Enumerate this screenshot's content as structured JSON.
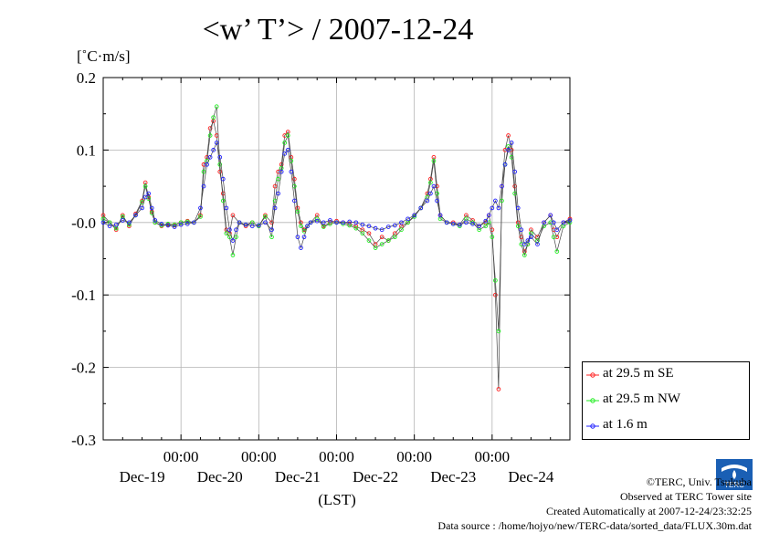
{
  "title": "<w’ T’> / 2007-12-24",
  "unit_label": "[˚C·m/s]",
  "chart_data": {
    "type": "line",
    "title": "<w’ T’> / 2007-12-24",
    "ylabel": "[˚C·m/s]",
    "xlabel": "(LST)",
    "ylim": [
      -0.3,
      0.2
    ],
    "xlim": [
      0,
      144
    ],
    "y_ticks": [
      {
        "value": 0.2,
        "label": "0.2"
      },
      {
        "value": 0.1,
        "label": "0.1"
      },
      {
        "value": 0.0,
        "label": "-0.0"
      },
      {
        "value": -0.1,
        "label": "-0.1"
      },
      {
        "value": -0.2,
        "label": "-0.2"
      },
      {
        "value": -0.3,
        "label": "-0.3"
      }
    ],
    "x_time_ticks": [
      {
        "hour": 24,
        "label": "00:00"
      },
      {
        "hour": 48,
        "label": "00:00"
      },
      {
        "hour": 72,
        "label": "00:00"
      },
      {
        "hour": 96,
        "label": "00:00"
      },
      {
        "hour": 120,
        "label": "00:00"
      }
    ],
    "x_day_ticks": [
      {
        "hour": 12,
        "label": "Dec-19"
      },
      {
        "hour": 36,
        "label": "Dec-20"
      },
      {
        "hour": 60,
        "label": "Dec-21"
      },
      {
        "hour": 84,
        "label": "Dec-22"
      },
      {
        "hour": 108,
        "label": "Dec-23"
      },
      {
        "hour": 132,
        "label": "Dec-24"
      }
    ],
    "grid": true,
    "legend_position": "bottom-right",
    "series": [
      {
        "name": "at 29.5 m SE",
        "color": "#ff2020",
        "points": [
          [
            0,
            0.01
          ],
          [
            2,
            0.0
          ],
          [
            4,
            -0.01
          ],
          [
            6,
            0.01
          ],
          [
            8,
            -0.005
          ],
          [
            10,
            0.012
          ],
          [
            12,
            0.03
          ],
          [
            13,
            0.055
          ],
          [
            14,
            0.035
          ],
          [
            15,
            0.015
          ],
          [
            16,
            0.0
          ],
          [
            18,
            -0.005
          ],
          [
            20,
            -0.003
          ],
          [
            22,
            -0.004
          ],
          [
            24,
            0.0
          ],
          [
            26,
            0.002
          ],
          [
            28,
            0.0
          ],
          [
            30,
            0.01
          ],
          [
            31,
            0.08
          ],
          [
            32,
            0.09
          ],
          [
            33,
            0.13
          ],
          [
            34,
            0.14
          ],
          [
            35,
            0.12
          ],
          [
            36,
            0.07
          ],
          [
            37,
            0.04
          ],
          [
            38,
            -0.01
          ],
          [
            39,
            -0.015
          ],
          [
            40,
            0.01
          ],
          [
            42,
            0.0
          ],
          [
            44,
            -0.005
          ],
          [
            46,
            0.0
          ],
          [
            48,
            -0.005
          ],
          [
            50,
            0.01
          ],
          [
            52,
            0.0
          ],
          [
            53,
            0.05
          ],
          [
            54,
            0.07
          ],
          [
            55,
            0.08
          ],
          [
            56,
            0.12
          ],
          [
            57,
            0.125
          ],
          [
            58,
            0.09
          ],
          [
            59,
            0.06
          ],
          [
            60,
            0.02
          ],
          [
            61,
            0.0
          ],
          [
            62,
            -0.01
          ],
          [
            63,
            -0.005
          ],
          [
            64,
            0.0
          ],
          [
            66,
            0.01
          ],
          [
            68,
            -0.005
          ],
          [
            70,
            0.0
          ],
          [
            72,
            0.002
          ],
          [
            74,
            0.0
          ],
          [
            76,
            -0.002
          ],
          [
            78,
            -0.005
          ],
          [
            80,
            -0.01
          ],
          [
            82,
            -0.015
          ],
          [
            84,
            -0.03
          ],
          [
            86,
            -0.02
          ],
          [
            88,
            -0.025
          ],
          [
            90,
            -0.015
          ],
          [
            92,
            -0.005
          ],
          [
            94,
            0.0
          ],
          [
            96,
            0.01
          ],
          [
            98,
            0.02
          ],
          [
            100,
            0.04
          ],
          [
            101,
            0.06
          ],
          [
            102,
            0.09
          ],
          [
            103,
            0.05
          ],
          [
            104,
            0.01
          ],
          [
            106,
            0.0
          ],
          [
            108,
            0.0
          ],
          [
            110,
            -0.003
          ],
          [
            112,
            0.01
          ],
          [
            114,
            0.003
          ],
          [
            116,
            -0.005
          ],
          [
            118,
            0.0
          ],
          [
            119,
            0.01
          ],
          [
            120,
            -0.01
          ],
          [
            121,
            -0.1
          ],
          [
            122,
            -0.23
          ],
          [
            123,
            0.05
          ],
          [
            124,
            0.1
          ],
          [
            125,
            0.12
          ],
          [
            126,
            0.1
          ],
          [
            127,
            0.05
          ],
          [
            128,
            0.0
          ],
          [
            129,
            -0.02
          ],
          [
            130,
            -0.04
          ],
          [
            131,
            -0.03
          ],
          [
            132,
            -0.01
          ],
          [
            134,
            -0.02
          ],
          [
            136,
            0.0
          ],
          [
            138,
            0.01
          ],
          [
            139,
            -0.01
          ],
          [
            140,
            -0.02
          ],
          [
            142,
            0.0
          ],
          [
            144,
            0.005
          ]
        ]
      },
      {
        "name": "at 29.5 m NW",
        "color": "#20ee20",
        "points": [
          [
            0,
            0.005
          ],
          [
            2,
            0.0
          ],
          [
            4,
            -0.008
          ],
          [
            6,
            0.008
          ],
          [
            8,
            -0.003
          ],
          [
            10,
            0.01
          ],
          [
            12,
            0.028
          ],
          [
            13,
            0.05
          ],
          [
            14,
            0.033
          ],
          [
            15,
            0.013
          ],
          [
            16,
            0.0
          ],
          [
            18,
            -0.004
          ],
          [
            20,
            -0.002
          ],
          [
            22,
            -0.003
          ],
          [
            24,
            0.0
          ],
          [
            26,
            0.001
          ],
          [
            28,
            0.0
          ],
          [
            30,
            0.008
          ],
          [
            31,
            0.07
          ],
          [
            32,
            0.085
          ],
          [
            33,
            0.12
          ],
          [
            34,
            0.145
          ],
          [
            35,
            0.16
          ],
          [
            36,
            0.08
          ],
          [
            37,
            0.03
          ],
          [
            38,
            -0.015
          ],
          [
            39,
            -0.02
          ],
          [
            40,
            -0.045
          ],
          [
            41,
            -0.02
          ],
          [
            42,
            0.0
          ],
          [
            44,
            -0.003
          ],
          [
            46,
            0.0
          ],
          [
            48,
            -0.005
          ],
          [
            50,
            0.008
          ],
          [
            52,
            -0.02
          ],
          [
            53,
            0.03
          ],
          [
            54,
            0.06
          ],
          [
            55,
            0.075
          ],
          [
            56,
            0.11
          ],
          [
            57,
            0.12
          ],
          [
            58,
            0.085
          ],
          [
            59,
            0.05
          ],
          [
            60,
            0.015
          ],
          [
            61,
            -0.005
          ],
          [
            62,
            -0.012
          ],
          [
            63,
            -0.005
          ],
          [
            64,
            0.0
          ],
          [
            66,
            0.005
          ],
          [
            68,
            -0.006
          ],
          [
            70,
            -0.002
          ],
          [
            72,
            0.0
          ],
          [
            74,
            -0.002
          ],
          [
            76,
            -0.004
          ],
          [
            78,
            -0.008
          ],
          [
            80,
            -0.015
          ],
          [
            82,
            -0.025
          ],
          [
            84,
            -0.035
          ],
          [
            86,
            -0.03
          ],
          [
            88,
            -0.025
          ],
          [
            90,
            -0.02
          ],
          [
            92,
            -0.01
          ],
          [
            94,
            0.0
          ],
          [
            96,
            0.008
          ],
          [
            98,
            0.02
          ],
          [
            100,
            0.035
          ],
          [
            101,
            0.055
          ],
          [
            102,
            0.085
          ],
          [
            103,
            0.04
          ],
          [
            104,
            0.005
          ],
          [
            106,
            0.0
          ],
          [
            108,
            -0.002
          ],
          [
            110,
            -0.005
          ],
          [
            112,
            0.005
          ],
          [
            114,
            0.0
          ],
          [
            116,
            -0.01
          ],
          [
            118,
            -0.005
          ],
          [
            119,
            0.0
          ],
          [
            120,
            -0.02
          ],
          [
            121,
            -0.08
          ],
          [
            122,
            -0.15
          ],
          [
            123,
            0.03
          ],
          [
            124,
            0.08
          ],
          [
            125,
            0.105
          ],
          [
            126,
            0.09
          ],
          [
            127,
            0.04
          ],
          [
            128,
            -0.005
          ],
          [
            129,
            -0.03
          ],
          [
            130,
            -0.045
          ],
          [
            131,
            -0.03
          ],
          [
            132,
            -0.015
          ],
          [
            134,
            -0.025
          ],
          [
            136,
            -0.005
          ],
          [
            138,
            0.0
          ],
          [
            139,
            -0.02
          ],
          [
            140,
            -0.04
          ],
          [
            142,
            -0.005
          ],
          [
            144,
            0.0
          ]
        ]
      },
      {
        "name": "at 1.6 m",
        "color": "#2020ff",
        "points": [
          [
            0,
            0.0
          ],
          [
            2,
            -0.005
          ],
          [
            4,
            -0.003
          ],
          [
            6,
            0.003
          ],
          [
            8,
            0.0
          ],
          [
            10,
            0.01
          ],
          [
            12,
            0.02
          ],
          [
            13,
            0.035
          ],
          [
            14,
            0.04
          ],
          [
            15,
            0.02
          ],
          [
            16,
            0.003
          ],
          [
            18,
            -0.002
          ],
          [
            20,
            -0.004
          ],
          [
            22,
            -0.006
          ],
          [
            24,
            -0.003
          ],
          [
            26,
            -0.002
          ],
          [
            28,
            0.0
          ],
          [
            30,
            0.02
          ],
          [
            31,
            0.05
          ],
          [
            32,
            0.08
          ],
          [
            33,
            0.09
          ],
          [
            34,
            0.1
          ],
          [
            35,
            0.11
          ],
          [
            36,
            0.09
          ],
          [
            37,
            0.06
          ],
          [
            38,
            0.02
          ],
          [
            39,
            -0.01
          ],
          [
            40,
            -0.025
          ],
          [
            41,
            -0.01
          ],
          [
            42,
            0.0
          ],
          [
            44,
            -0.003
          ],
          [
            46,
            -0.005
          ],
          [
            48,
            -0.004
          ],
          [
            50,
            0.0
          ],
          [
            52,
            -0.01
          ],
          [
            53,
            0.02
          ],
          [
            54,
            0.04
          ],
          [
            55,
            0.07
          ],
          [
            56,
            0.095
          ],
          [
            57,
            0.1
          ],
          [
            58,
            0.07
          ],
          [
            59,
            0.03
          ],
          [
            60,
            -0.02
          ],
          [
            61,
            -0.035
          ],
          [
            62,
            -0.02
          ],
          [
            63,
            -0.005
          ],
          [
            64,
            0.0
          ],
          [
            66,
            0.002
          ],
          [
            68,
            0.0
          ],
          [
            70,
            0.003
          ],
          [
            72,
            0.0
          ],
          [
            74,
            0.0
          ],
          [
            76,
            0.001
          ],
          [
            78,
            0.0
          ],
          [
            80,
            -0.003
          ],
          [
            82,
            -0.005
          ],
          [
            84,
            -0.008
          ],
          [
            86,
            -0.01
          ],
          [
            88,
            -0.006
          ],
          [
            90,
            -0.004
          ],
          [
            92,
            0.0
          ],
          [
            94,
            0.005
          ],
          [
            96,
            0.01
          ],
          [
            98,
            0.02
          ],
          [
            100,
            0.03
          ],
          [
            101,
            0.04
          ],
          [
            102,
            0.05
          ],
          [
            103,
            0.03
          ],
          [
            104,
            0.01
          ],
          [
            106,
            0.0
          ],
          [
            108,
            -0.002
          ],
          [
            110,
            -0.003
          ],
          [
            112,
            0.0
          ],
          [
            114,
            -0.002
          ],
          [
            116,
            -0.005
          ],
          [
            118,
            0.002
          ],
          [
            119,
            0.01
          ],
          [
            120,
            0.02
          ],
          [
            121,
            0.03
          ],
          [
            122,
            0.02
          ],
          [
            123,
            0.05
          ],
          [
            124,
            0.08
          ],
          [
            125,
            0.1
          ],
          [
            126,
            0.11
          ],
          [
            127,
            0.07
          ],
          [
            128,
            0.02
          ],
          [
            129,
            -0.01
          ],
          [
            130,
            -0.03
          ],
          [
            131,
            -0.025
          ],
          [
            132,
            -0.02
          ],
          [
            134,
            -0.03
          ],
          [
            136,
            0.0
          ],
          [
            138,
            0.01
          ],
          [
            139,
            0.0
          ],
          [
            140,
            -0.01
          ],
          [
            142,
            0.0
          ],
          [
            144,
            0.003
          ]
        ]
      }
    ]
  },
  "legend": {
    "items": [
      {
        "label": "at 29.5 m SE",
        "color": "#ff2020"
      },
      {
        "label": "at 29.5 m NW",
        "color": "#20ee20"
      },
      {
        "label": "at 1.6 m",
        "color": "#2020ff"
      }
    ]
  },
  "credits": {
    "line1": "©TERC, Univ. Tsukuba",
    "line2": "Observed at TERC Tower site",
    "line3": "Created Automatically at 2007-12-24/23:32:25",
    "line4": "Data source : /home/hojyo/new/TERC-data/sorted_data/FLUX.30m.dat"
  },
  "logo_text": "TERC"
}
